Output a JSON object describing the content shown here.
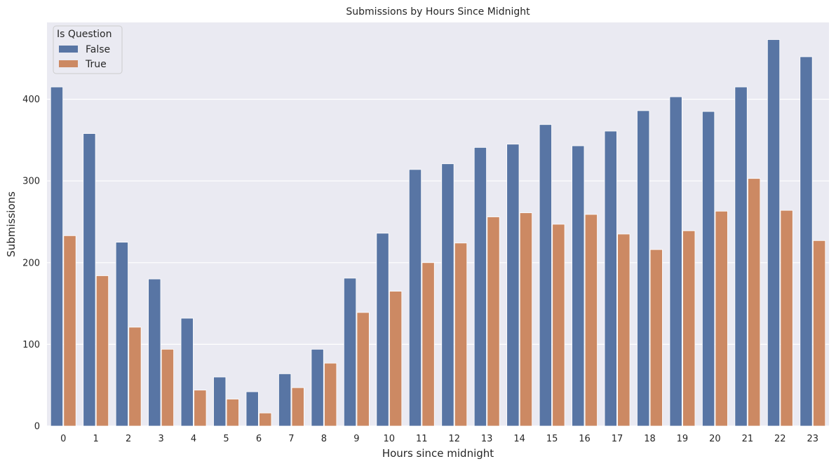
{
  "chart_data": {
    "type": "bar",
    "title": "Submissions by Hours Since Midnight",
    "xlabel": "Hours since midnight",
    "ylabel": "Submissions",
    "categories": [
      "0",
      "1",
      "2",
      "3",
      "4",
      "5",
      "6",
      "7",
      "8",
      "9",
      "10",
      "11",
      "12",
      "13",
      "14",
      "15",
      "16",
      "17",
      "18",
      "19",
      "20",
      "21",
      "22",
      "23"
    ],
    "series": [
      {
        "name": "False",
        "color": "#5875a4",
        "values": [
          415,
          358,
          225,
          180,
          132,
          60,
          42,
          64,
          94,
          181,
          236,
          314,
          321,
          341,
          345,
          369,
          343,
          361,
          386,
          403,
          385,
          415,
          473,
          452
        ]
      },
      {
        "name": "True",
        "color": "#cc8963",
        "values": [
          233,
          184,
          121,
          94,
          44,
          33,
          16,
          47,
          77,
          139,
          165,
          200,
          224,
          256,
          261,
          247,
          259,
          235,
          216,
          239,
          263,
          303,
          264,
          227
        ]
      }
    ],
    "ylim": [
      0,
      494
    ],
    "yticks": [
      0,
      100,
      200,
      300,
      400
    ],
    "grid": true,
    "background": "#eaeaf2",
    "legend": {
      "title": "Is Question",
      "position": "top-left"
    }
  }
}
